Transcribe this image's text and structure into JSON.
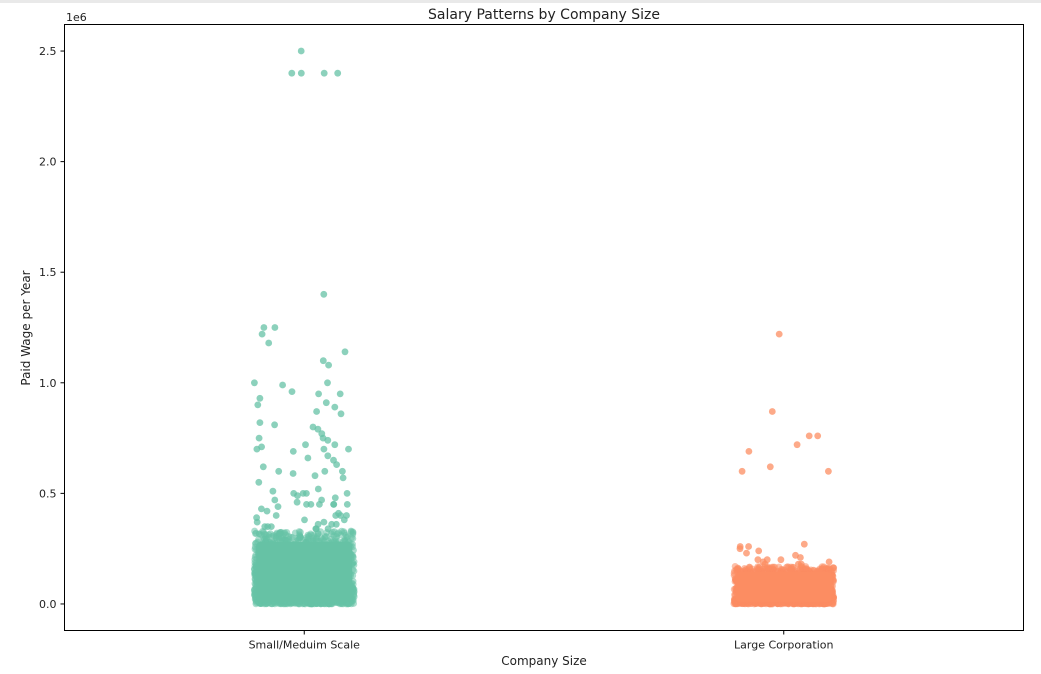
{
  "chart_data": {
    "type": "scatter",
    "title": "Salary Patterns by Company Size",
    "xlabel": "Company Size",
    "ylabel": "Paid Wage per Year",
    "y_offset_label": "1e6",
    "categories": [
      "Small/Meduim Scale",
      "Large Corporation"
    ],
    "y_ticks": [
      0.0,
      0.5,
      1.0,
      1.5,
      2.0,
      2.5
    ],
    "y_tick_labels": [
      "0.0",
      "0.5",
      "1.0",
      "1.5",
      "2.0",
      "2.5"
    ],
    "ylim": [
      -0.12,
      2.62
    ],
    "grid": false,
    "legend": "none",
    "series": [
      {
        "category": "Small/Meduim Scale",
        "color": "#66c2a5",
        "dense_range": [
          0.0,
          0.33
        ],
        "outliers": [
          2.5,
          2.4,
          2.4,
          2.4,
          2.4,
          1.4,
          1.25,
          1.25,
          1.22,
          1.18,
          1.14,
          1.1,
          1.08,
          1.0,
          1.0,
          0.99,
          0.96,
          0.95,
          0.95,
          0.93,
          0.91,
          0.9,
          0.89,
          0.87,
          0.86,
          0.82,
          0.81,
          0.8,
          0.79,
          0.77,
          0.75,
          0.75,
          0.74,
          0.72,
          0.72,
          0.71,
          0.7,
          0.7,
          0.7,
          0.69,
          0.67,
          0.66,
          0.65,
          0.63,
          0.62,
          0.6,
          0.6,
          0.6,
          0.59,
          0.58,
          0.57,
          0.55,
          0.52,
          0.51,
          0.5,
          0.5,
          0.5,
          0.5,
          0.49,
          0.48,
          0.47,
          0.47,
          0.46,
          0.45,
          0.45,
          0.45,
          0.45,
          0.45,
          0.45,
          0.44,
          0.43,
          0.42,
          0.41,
          0.4,
          0.4,
          0.4,
          0.4,
          0.39,
          0.38,
          0.38,
          0.37,
          0.37,
          0.36,
          0.36,
          0.36,
          0.35,
          0.35,
          0.35,
          0.34,
          0.34,
          0.34
        ]
      },
      {
        "category": "Large Corporation",
        "color": "#fc8d62",
        "dense_range": [
          0.0,
          0.17
        ],
        "outliers": [
          1.22,
          0.87,
          0.76,
          0.76,
          0.72,
          0.69,
          0.62,
          0.6,
          0.6,
          0.27,
          0.26,
          0.26,
          0.25,
          0.24,
          0.23,
          0.22,
          0.21,
          0.2,
          0.2,
          0.2,
          0.19,
          0.19,
          0.18,
          0.18,
          0.18
        ]
      }
    ]
  }
}
